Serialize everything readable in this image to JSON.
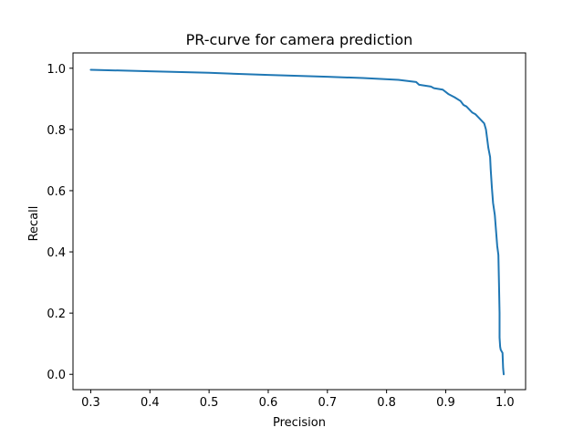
{
  "chart_data": {
    "type": "line",
    "title": "PR-curve for camera prediction",
    "xlabel": "Precision",
    "ylabel": "Recall",
    "xlim": [
      0.27,
      1.035
    ],
    "ylim": [
      -0.05,
      1.05
    ],
    "xticks": [
      0.3,
      0.4,
      0.5,
      0.6,
      0.7,
      0.8,
      0.9,
      1.0
    ],
    "yticks": [
      0.0,
      0.2,
      0.4,
      0.6,
      0.8,
      1.0
    ],
    "xtick_labels": [
      "0.3",
      "0.4",
      "0.5",
      "0.6",
      "0.7",
      "0.8",
      "0.9",
      "1.0"
    ],
    "ytick_labels": [
      "0.0",
      "0.2",
      "0.4",
      "0.6",
      "0.8",
      "1.0"
    ],
    "grid": false,
    "series": [
      {
        "color": "#1f77b4",
        "x": [
          0.3,
          0.4,
          0.5,
          0.6,
          0.7,
          0.76,
          0.82,
          0.85,
          0.855,
          0.875,
          0.88,
          0.895,
          0.905,
          0.915,
          0.925,
          0.93,
          0.935,
          0.94,
          0.945,
          0.95,
          0.955,
          0.96,
          0.965,
          0.968,
          0.97,
          0.972,
          0.975,
          0.976,
          0.978,
          0.98,
          0.983,
          0.985,
          0.987,
          0.989,
          0.99,
          0.991,
          0.991,
          0.992,
          0.993,
          0.996,
          0.997,
          0.998
        ],
        "y": [
          0.995,
          0.99,
          0.985,
          0.978,
          0.972,
          0.968,
          0.962,
          0.955,
          0.946,
          0.94,
          0.935,
          0.93,
          0.915,
          0.905,
          0.893,
          0.88,
          0.875,
          0.865,
          0.855,
          0.85,
          0.84,
          0.83,
          0.82,
          0.8,
          0.77,
          0.74,
          0.71,
          0.67,
          0.61,
          0.56,
          0.52,
          0.47,
          0.42,
          0.39,
          0.3,
          0.2,
          0.12,
          0.09,
          0.08,
          0.07,
          0.02,
          0.0
        ]
      }
    ]
  }
}
